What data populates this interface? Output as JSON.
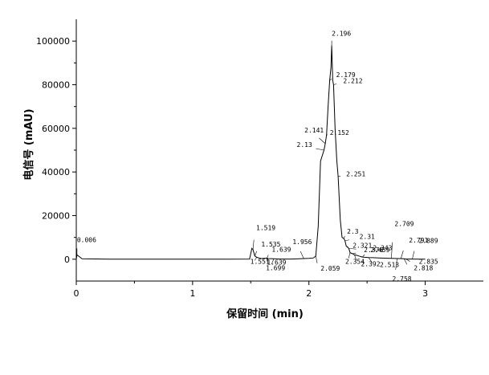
{
  "chart_data": {
    "type": "line",
    "title": "",
    "xlabel": "保留时间 (min)",
    "ylabel": "电信号 (mAU)",
    "xlim": [
      0,
      3.5
    ],
    "ylim": [
      -10000,
      110000
    ],
    "x_ticks": [
      0,
      1,
      2,
      3
    ],
    "x_tick_labels": [
      "0",
      "1",
      "2",
      "3"
    ],
    "y_ticks": [
      0,
      20000,
      40000,
      60000,
      80000,
      100000
    ],
    "y_tick_labels": [
      "0",
      "20000",
      "40000",
      "60000",
      "80000",
      "100000"
    ],
    "grid": false,
    "series": [
      {
        "x": [
          0,
          0.006,
          0.05,
          0.3,
          0.6,
          1.0,
          1.3,
          1.49,
          1.51,
          1.519,
          1.535,
          1.551,
          1.57,
          1.59,
          1.639,
          1.65,
          1.699,
          1.75,
          1.85,
          1.956,
          2.0,
          2.04,
          2.059,
          2.08,
          2.1,
          2.13,
          2.141,
          2.152,
          2.165,
          2.179,
          2.19,
          2.196,
          2.205,
          2.212,
          2.225,
          2.24,
          2.251,
          2.27,
          2.285,
          2.3,
          2.31,
          2.321,
          2.343,
          2.354,
          2.376,
          2.392,
          2.41,
          2.43,
          2.459,
          2.48,
          2.513,
          2.55,
          2.6,
          2.65,
          2.709,
          2.758,
          2.791,
          2.818,
          2.835,
          2.889,
          2.95,
          3.0
        ],
        "y": [
          0,
          2000,
          200,
          0,
          0,
          0,
          0,
          100,
          5000,
          4500,
          1500,
          900,
          600,
          300,
          500,
          300,
          200,
          100,
          100,
          300,
          400,
          600,
          1500,
          15000,
          45000,
          50000,
          53000,
          57000,
          70000,
          82000,
          88000,
          98000,
          82000,
          80000,
          60000,
          45000,
          38000,
          18000,
          10000,
          9500,
          8500,
          6000,
          5000,
          3000,
          2500,
          2000,
          1800,
          1500,
          1000,
          900,
          800,
          700,
          600,
          500,
          400,
          300,
          300,
          200,
          100,
          100,
          0,
          0
        ]
      }
    ],
    "peak_labels": [
      {
        "text": "0.006",
        "x": 0.006,
        "y": 2000
      },
      {
        "text": "1.519",
        "x": 1.519,
        "y": 4500
      },
      {
        "text": "1.535",
        "x": 1.535,
        "y": 1500
      },
      {
        "text": "1.551",
        "x": 1.551,
        "y": 900
      },
      {
        "text": "1.639",
        "x": 1.639,
        "y": 500
      },
      {
        "text": "1.639",
        "x": 1.639,
        "y": 500
      },
      {
        "text": "1.699",
        "x": 1.699,
        "y": 200
      },
      {
        "text": "1.956",
        "x": 1.956,
        "y": 300
      },
      {
        "text": "2.059",
        "x": 2.059,
        "y": 1500
      },
      {
        "text": "2.13",
        "x": 2.13,
        "y": 50000
      },
      {
        "text": "2.141",
        "x": 2.141,
        "y": 53000
      },
      {
        "text": "2.152",
        "x": 2.152,
        "y": 57000
      },
      {
        "text": "2.179",
        "x": 2.179,
        "y": 82000
      },
      {
        "text": "2.196",
        "x": 2.196,
        "y": 98000
      },
      {
        "text": "2.212",
        "x": 2.212,
        "y": 80000
      },
      {
        "text": "2.251",
        "x": 2.251,
        "y": 38000
      },
      {
        "text": "2.3",
        "x": 2.3,
        "y": 9500
      },
      {
        "text": "2.31",
        "x": 2.31,
        "y": 8500
      },
      {
        "text": "2.321",
        "x": 2.321,
        "y": 6000
      },
      {
        "text": "2.343",
        "x": 2.343,
        "y": 5000
      },
      {
        "text": "2.354",
        "x": 2.354,
        "y": 3000
      },
      {
        "text": "2.376",
        "x": 2.376,
        "y": 2500
      },
      {
        "text": "2.392",
        "x": 2.392,
        "y": 2000
      },
      {
        "text": "2.459",
        "x": 2.459,
        "y": 1000
      },
      {
        "text": "2.513",
        "x": 2.513,
        "y": 800
      },
      {
        "text": "2.709",
        "x": 2.709,
        "y": 400
      },
      {
        "text": "2.758",
        "x": 2.758,
        "y": 300
      },
      {
        "text": "2.791",
        "x": 2.791,
        "y": 300
      },
      {
        "text": "2.818",
        "x": 2.818,
        "y": 200
      },
      {
        "text": "2.835",
        "x": 2.835,
        "y": 100
      },
      {
        "text": "2.889",
        "x": 2.889,
        "y": 100
      }
    ]
  }
}
